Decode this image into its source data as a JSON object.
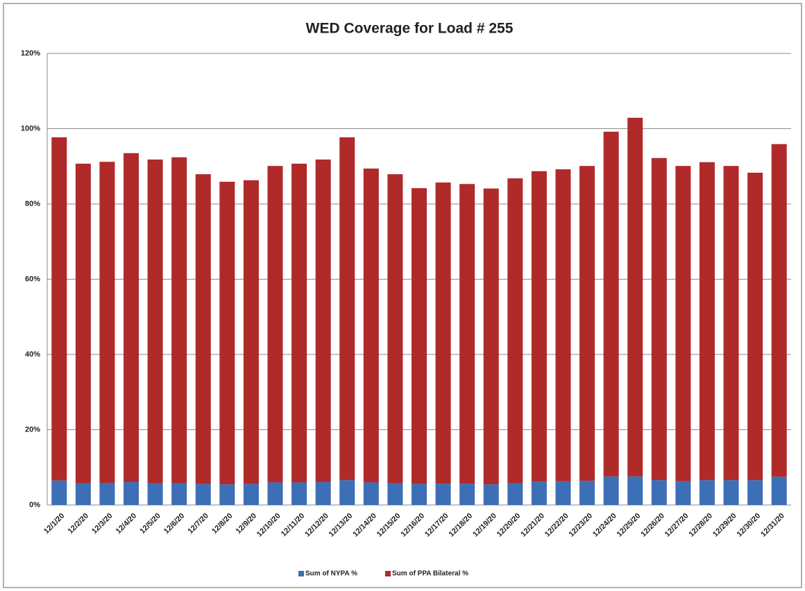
{
  "chart_data": {
    "type": "stacked_bar",
    "title": "WED Coverage for Load # 255",
    "categories": [
      "12/1/20",
      "12/2/20",
      "12/3/20",
      "12/4/20",
      "12/5/20",
      "12/6/20",
      "12/7/20",
      "12/8/20",
      "12/9/20",
      "12/10/20",
      "12/11/20",
      "12/12/20",
      "12/13/20",
      "12/14/20",
      "12/15/20",
      "12/16/20",
      "12/17/20",
      "12/18/20",
      "12/19/20",
      "12/20/20",
      "12/21/20",
      "12/22/20",
      "12/23/20",
      "12/24/20",
      "12/25/20",
      "12/26/20",
      "12/27/20",
      "12/28/20",
      "12/29/20",
      "12/30/20",
      "12/31/20"
    ],
    "series": [
      {
        "name": "Sum of NYPA %",
        "color": "#3d6fb6",
        "values": [
          6.5,
          5.8,
          5.9,
          6.1,
          5.8,
          5.8,
          5.6,
          5.5,
          5.6,
          6.0,
          6.0,
          6.1,
          6.6,
          6.0,
          5.8,
          5.6,
          5.7,
          5.7,
          5.5,
          5.8,
          6.2,
          6.3,
          6.4,
          7.6,
          7.6,
          6.6,
          6.3,
          6.6,
          6.6,
          6.6,
          7.5
        ]
      },
      {
        "name": "Sum of PPA Bilateral %",
        "color": "#b02a2a",
        "values": [
          91.2,
          84.9,
          85.3,
          87.4,
          86.0,
          86.6,
          82.3,
          80.4,
          80.7,
          84.1,
          84.7,
          85.7,
          91.1,
          83.4,
          82.1,
          78.6,
          80.0,
          79.6,
          78.6,
          81.0,
          82.5,
          82.9,
          83.7,
          91.6,
          95.3,
          85.6,
          83.8,
          84.5,
          83.5,
          81.7,
          88.4
        ]
      }
    ],
    "ylim": [
      0,
      120
    ],
    "yticks": [
      {
        "value": 0,
        "label": "0%"
      },
      {
        "value": 20,
        "label": "20%"
      },
      {
        "value": 40,
        "label": "40%"
      },
      {
        "value": 60,
        "label": "60%"
      },
      {
        "value": 80,
        "label": "80%"
      },
      {
        "value": 100,
        "label": "100%"
      },
      {
        "value": 120,
        "label": "120%"
      }
    ],
    "grid": true,
    "legend": "bottom"
  }
}
